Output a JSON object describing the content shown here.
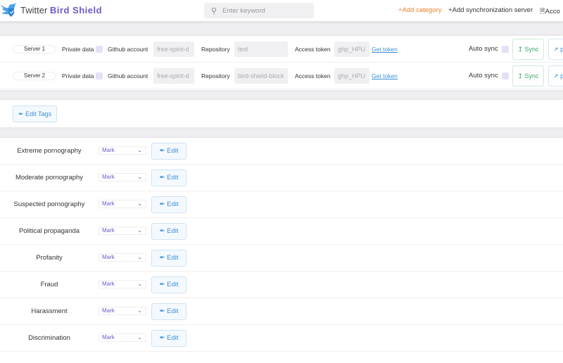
{
  "header": {
    "title_plain": "Twitter",
    "title_bold": "Bird Shield",
    "search_placeholder": "Enter keyword",
    "add_category": "+Add category",
    "add_server": "+Add synchronization server",
    "account": "Acco",
    "account_icon": "document-icon"
  },
  "colors": {
    "accent": "#6a5acd",
    "orange": "#f07c2a",
    "link": "#3b8fd9",
    "sync": "#3aa86b"
  },
  "servers": [
    {
      "name": "Server 1",
      "private_label": "Private data",
      "github_label": "Github account",
      "github": "free-spirit-d",
      "repo_label": "Repository",
      "repo": "test",
      "token_label": "Access token",
      "token": "ghp_HPU",
      "get_token": "Get token",
      "auto_sync": "Auto sync",
      "sync": "Sync",
      "more": "p"
    },
    {
      "name": "Server 2",
      "private_label": "Private data",
      "github_label": "Github account",
      "github": "free-spirit-d",
      "repo_label": "Repository",
      "repo": "bird-shield-block",
      "token_label": "Access token",
      "token": "ghp_HPU",
      "get_token": "Get token",
      "auto_sync": "Auto sync",
      "sync": "Sync",
      "more": "p"
    }
  ],
  "edit_tags": "Edit Tags",
  "categories": [
    {
      "name": "Extreme pornography",
      "action": "Mark",
      "edit": "Edit"
    },
    {
      "name": "Moderate pornography",
      "action": "Mark",
      "edit": "Edit"
    },
    {
      "name": "Suspected pornography",
      "action": "Mark",
      "edit": "Edit"
    },
    {
      "name": "Political propaganda",
      "action": "Mark",
      "edit": "Edit"
    },
    {
      "name": "Profanity",
      "action": "Mark",
      "edit": "Edit"
    },
    {
      "name": "Fraud",
      "action": "Mark",
      "edit": "Edit"
    },
    {
      "name": "Harassment",
      "action": "Mark",
      "edit": "Edit"
    },
    {
      "name": "Discrimination",
      "action": "Mark",
      "edit": "Edit"
    }
  ]
}
